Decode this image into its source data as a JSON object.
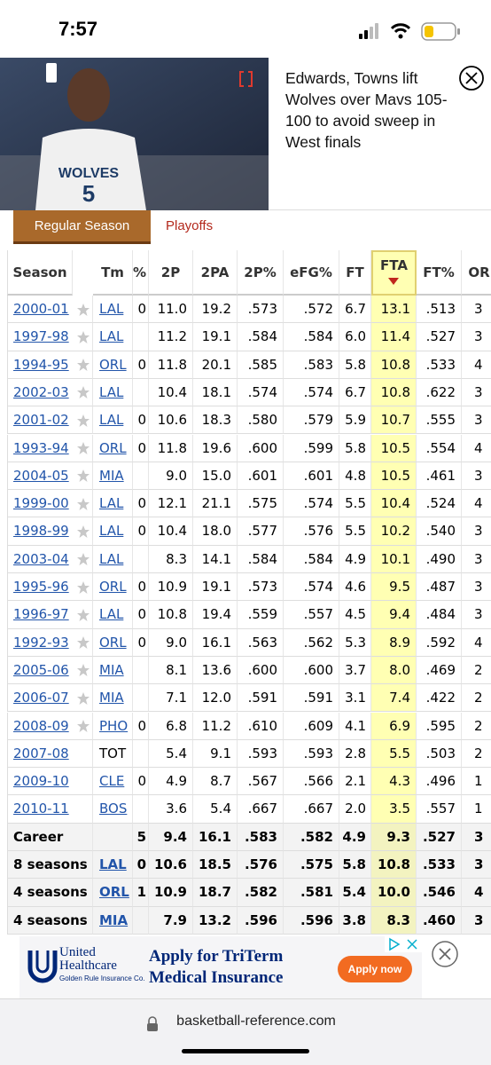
{
  "status_bar": {
    "time": "7:57"
  },
  "video": {
    "headline": "Edwards, Towns lift Wolves over Mavs 105-100 to avoid sweep in West finals"
  },
  "tabs": [
    "Regular Season",
    "Playoffs"
  ],
  "table": {
    "header": [
      "Season",
      "Tm",
      "%",
      "2P",
      "2PA",
      "2P%",
      "eFG%",
      "FT",
      "FTA",
      "FT%",
      "OR"
    ],
    "rows": [
      [
        "2000-01",
        "LAL",
        "0",
        "11.0",
        "19.2",
        ".573",
        ".572",
        "6.7",
        "13.1",
        ".513",
        "3"
      ],
      [
        "1997-98",
        "LAL",
        null,
        "11.2",
        "19.1",
        ".584",
        ".584",
        "6.0",
        "11.4",
        ".527",
        "3"
      ],
      [
        "1994-95",
        "ORL",
        "0",
        "11.8",
        "20.1",
        ".585",
        ".583",
        "5.8",
        "10.8",
        ".533",
        "4"
      ],
      [
        "2002-03",
        "LAL",
        null,
        "10.4",
        "18.1",
        ".574",
        ".574",
        "6.7",
        "10.8",
        ".622",
        "3"
      ],
      [
        "2001-02",
        "LAL",
        "0",
        "10.6",
        "18.3",
        ".580",
        ".579",
        "5.9",
        "10.7",
        ".555",
        "3"
      ],
      [
        "1993-94",
        "ORL",
        "0",
        "11.8",
        "19.6",
        ".600",
        ".599",
        "5.8",
        "10.5",
        ".554",
        "4"
      ],
      [
        "2004-05",
        "MIA",
        null,
        "9.0",
        "15.0",
        ".601",
        ".601",
        "4.8",
        "10.5",
        ".461",
        "3"
      ],
      [
        "1999-00",
        "LAL",
        "0",
        "12.1",
        "21.1",
        ".575",
        ".574",
        "5.5",
        "10.4",
        ".524",
        "4"
      ],
      [
        "1998-99",
        "LAL",
        "0",
        "10.4",
        "18.0",
        ".577",
        ".576",
        "5.5",
        "10.2",
        ".540",
        "3"
      ],
      [
        "2003-04",
        "LAL",
        null,
        "8.3",
        "14.1",
        ".584",
        ".584",
        "4.9",
        "10.1",
        ".490",
        "3"
      ],
      [
        "1995-96",
        "ORL",
        "0",
        "10.9",
        "19.1",
        ".573",
        ".574",
        "4.6",
        "9.5",
        ".487",
        "3"
      ],
      [
        "1996-97",
        "LAL",
        "0",
        "10.8",
        "19.4",
        ".559",
        ".557",
        "4.5",
        "9.4",
        ".484",
        "3"
      ],
      [
        "1992-93",
        "ORL",
        "0",
        "9.0",
        "16.1",
        ".563",
        ".562",
        "5.3",
        "8.9",
        ".592",
        "4"
      ],
      [
        "2005-06",
        "MIA",
        null,
        "8.1",
        "13.6",
        ".600",
        ".600",
        "3.7",
        "8.0",
        ".469",
        "2"
      ],
      [
        "2006-07",
        "MIA",
        null,
        "7.1",
        "12.0",
        ".591",
        ".591",
        "3.1",
        "7.4",
        ".422",
        "2"
      ],
      [
        "2008-09",
        "PHO",
        "0",
        "6.8",
        "11.2",
        ".610",
        ".609",
        "4.1",
        "6.9",
        ".595",
        "2"
      ],
      [
        "2007-08",
        "TOT",
        null,
        "5.4",
        "9.1",
        ".593",
        ".593",
        "2.8",
        "5.5",
        ".503",
        "2"
      ],
      [
        "2009-10",
        "CLE",
        "0",
        "4.9",
        "8.7",
        ".567",
        ".566",
        "2.1",
        "4.3",
        ".496",
        "1"
      ],
      [
        "2010-11",
        "BOS",
        null,
        "3.6",
        "5.4",
        ".667",
        ".667",
        "2.0",
        "3.5",
        ".557",
        "1"
      ],
      [
        "Career",
        null,
        "5",
        "9.4",
        "16.1",
        ".583",
        ".582",
        "4.9",
        "9.3",
        ".527",
        "3"
      ],
      [
        "8 seasons",
        "LAL",
        "0",
        "10.6",
        "18.5",
        ".576",
        ".575",
        "5.8",
        "10.8",
        ".533",
        "3"
      ],
      [
        "4 seasons",
        "ORL",
        "1",
        "10.9",
        "18.7",
        ".582",
        ".581",
        "5.4",
        "10.0",
        ".546",
        "4"
      ],
      [
        "4 seasons",
        "MIA",
        null,
        "7.9",
        "13.2",
        ".596",
        ".596",
        "3.8",
        "8.3",
        ".460",
        "3"
      ]
    ]
  },
  "ad": {
    "brand": "United Healthcare",
    "subtitle": "Golden Rule Insurance Co.",
    "headline": "Apply for TriTerm Medical Insurance",
    "button": "Apply now"
  },
  "browser": {
    "url": "basketball-reference.com"
  }
}
